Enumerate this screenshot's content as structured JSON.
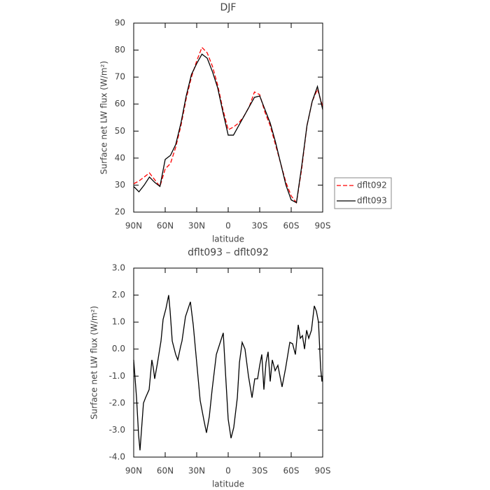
{
  "chart_data": [
    {
      "type": "line",
      "title": "DJF",
      "xlabel": "latitude",
      "ylabel": "Surface net LW flux (W/m²)",
      "xlim": [
        90,
        -90
      ],
      "xticks": [
        {
          "value": 90,
          "label": "90N"
        },
        {
          "value": 60,
          "label": "60N"
        },
        {
          "value": 30,
          "label": "30N"
        },
        0,
        {
          "value": -30,
          "label": "30S"
        },
        {
          "value": -60,
          "label": "60S"
        },
        {
          "value": -90,
          "label": "90S"
        }
      ],
      "ylim": [
        20,
        90
      ],
      "yticks": [
        20,
        30,
        40,
        50,
        60,
        70,
        80,
        90
      ],
      "legend": "outside-right",
      "x": [
        90,
        85,
        80,
        75,
        70,
        65,
        60,
        55,
        50,
        45,
        40,
        35,
        30,
        25,
        20,
        15,
        10,
        5,
        0,
        -5,
        -10,
        -15,
        -20,
        -25,
        -30,
        -35,
        -40,
        -45,
        -50,
        -55,
        -60,
        -65,
        -70,
        -75,
        -80,
        -85,
        -90
      ],
      "series": [
        {
          "name": "dflt092",
          "color": "#ff0000",
          "linestyle": "dashed",
          "values": [
            30.5,
            31.5,
            33,
            34.5,
            32,
            29.5,
            36,
            38,
            44,
            52,
            62,
            70,
            76,
            81,
            79,
            74,
            67,
            58,
            50.5,
            51.5,
            53,
            55.5,
            59,
            64.5,
            63.5,
            57,
            52,
            45,
            38,
            31,
            26,
            23.5,
            36,
            52,
            61,
            65.5,
            59
          ]
        },
        {
          "name": "dflt093",
          "color": "#000000",
          "linestyle": "solid",
          "values": [
            29.5,
            27.5,
            30,
            33,
            31,
            29.5,
            39.5,
            41,
            45,
            53,
            63,
            71,
            75,
            78.5,
            77,
            72,
            66,
            57,
            48.5,
            48.5,
            52,
            55.5,
            59,
            62.5,
            63,
            58,
            53,
            46,
            38,
            30,
            24.5,
            23.5,
            37,
            52,
            61,
            66.5,
            58
          ]
        }
      ]
    },
    {
      "type": "line",
      "title": "dflt093 – dflt092",
      "xlabel": "latitude",
      "ylabel": "Surface net LW flux (W/m²)",
      "xlim": [
        90,
        -90
      ],
      "xticks": [
        {
          "value": 90,
          "label": "90N"
        },
        {
          "value": 60,
          "label": "60N"
        },
        {
          "value": 30,
          "label": "30N"
        },
        0,
        {
          "value": -30,
          "label": "30S"
        },
        {
          "value": -60,
          "label": "60S"
        },
        {
          "value": -90,
          "label": "90S"
        }
      ],
      "ylim": [
        -4,
        3
      ],
      "yticks": [
        {
          "value": -4,
          "label": "-4.0"
        },
        {
          "value": -3,
          "label": "-3.0"
        },
        {
          "value": -2,
          "label": "-2.0"
        },
        {
          "value": -1,
          "label": "-1.0"
        },
        {
          "value": 0,
          "label": "0.0"
        },
        {
          "value": 1,
          "label": "1.0"
        },
        {
          "value": 2,
          "label": "2.0"
        },
        {
          "value": 3,
          "label": "3.0"
        }
      ],
      "color": "#000000",
      "x": [
        90,
        87.3,
        85.3,
        84,
        80.7,
        78.7,
        75.3,
        72.7,
        71.3,
        70,
        67.3,
        64,
        62,
        59.3,
        56.7,
        55.3,
        53.3,
        50,
        48,
        45.3,
        44,
        40.7,
        36,
        33.3,
        30,
        26.7,
        23.3,
        20.7,
        18,
        15.3,
        11.3,
        8,
        4.7,
        2.7,
        0,
        -2.7,
        -5.3,
        -8.7,
        -10.7,
        -13.3,
        -16,
        -19.3,
        -22.7,
        -25.3,
        -28,
        -30,
        -32,
        -34,
        -36,
        -38,
        -40,
        -42,
        -44.7,
        -47.3,
        -51.3,
        -54.7,
        -58.7,
        -61.3,
        -64,
        -66.7,
        -68.7,
        -70.7,
        -72.7,
        -74.7,
        -76.7,
        -79.3,
        -82,
        -84,
        -86,
        -88,
        -89.3,
        -90
      ],
      "values": [
        -0.4,
        -1.8,
        -3.2,
        -3.75,
        -2.0,
        -1.8,
        -1.5,
        -0.4,
        -0.7,
        -1.1,
        -0.5,
        0.3,
        1.1,
        1.5,
        2.0,
        1.4,
        0.3,
        -0.2,
        -0.4,
        0.1,
        0.3,
        1.2,
        1.75,
        0.9,
        -0.5,
        -1.9,
        -2.6,
        -3.1,
        -2.5,
        -1.5,
        -0.2,
        0.2,
        0.6,
        -0.8,
        -2.6,
        -3.3,
        -2.9,
        -1.8,
        -0.5,
        0.25,
        0,
        -1.0,
        -1.8,
        -1.1,
        -1.1,
        -0.6,
        -0.2,
        -1.5,
        -0.5,
        -0.1,
        -1.2,
        -0.4,
        -0.8,
        -0.6,
        -1.4,
        -0.7,
        0.25,
        0.2,
        -0.2,
        0.9,
        0.4,
        0.5,
        0.0,
        0.7,
        0.4,
        0.7,
        1.6,
        1.4,
        1.0,
        -0.7,
        -1.2,
        -1.0
      ]
    }
  ]
}
